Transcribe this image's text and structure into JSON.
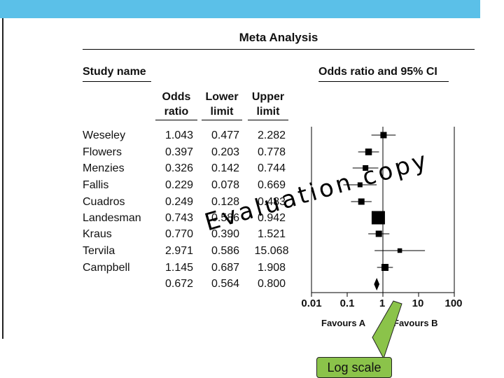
{
  "title": "Meta Analysis",
  "headers": {
    "study_name": "Study name",
    "chart_title": "Odds ratio and 95% CI",
    "odds_ratio": [
      "Odds",
      "ratio"
    ],
    "lower_limit": [
      "Lower",
      "limit"
    ],
    "upper_limit": [
      "Upper",
      "limit"
    ]
  },
  "rows": [
    {
      "name": "Weseley",
      "or": "1.043",
      "lower": "0.477",
      "upper": "2.282"
    },
    {
      "name": "Flowers",
      "or": "0.397",
      "lower": "0.203",
      "upper": "0.778"
    },
    {
      "name": "Menzies",
      "or": "0.326",
      "lower": "0.142",
      "upper": "0.744"
    },
    {
      "name": "Fallis",
      "or": "0.229",
      "lower": "0.078",
      "upper": "0.669"
    },
    {
      "name": "Cuadros",
      "or": "0.249",
      "lower": "0.128",
      "upper": "0.483"
    },
    {
      "name": "Landesman",
      "or": "0.743",
      "lower": "0.586",
      "upper": "0.942"
    },
    {
      "name": "Kraus",
      "or": "0.770",
      "lower": "0.390",
      "upper": "1.521"
    },
    {
      "name": "Tervila",
      "or": "2.971",
      "lower": "0.586",
      "upper": "15.068"
    },
    {
      "name": "Campbell",
      "or": "1.145",
      "lower": "0.687",
      "upper": "1.908"
    }
  ],
  "summary": {
    "or": "0.672",
    "lower": "0.564",
    "upper": "0.800"
  },
  "axis": {
    "ticks": [
      "0.01",
      "0.1",
      "1",
      "10",
      "100"
    ],
    "favours_a": "Favours A",
    "favours_b": "Favours B"
  },
  "watermark": "Evaluation copy",
  "callout": "Log scale",
  "colors": {
    "top_bar": "#5bc0e8",
    "callout": "#8bc34a"
  },
  "chart_data": {
    "type": "scatter",
    "scale": "log",
    "title": "Odds ratio and 95% CI",
    "xlim": [
      0.01,
      100
    ],
    "x_ticks": [
      0.01,
      0.1,
      1,
      10,
      100
    ],
    "studies": [
      {
        "name": "Weseley",
        "or": 1.043,
        "lower": 0.477,
        "upper": 2.282,
        "weight": 1.0
      },
      {
        "name": "Flowers",
        "or": 0.397,
        "lower": 0.203,
        "upper": 0.778,
        "weight": 1.1
      },
      {
        "name": "Menzies",
        "or": 0.326,
        "lower": 0.142,
        "upper": 0.744,
        "weight": 0.8
      },
      {
        "name": "Fallis",
        "or": 0.229,
        "lower": 0.078,
        "upper": 0.669,
        "weight": 0.6
      },
      {
        "name": "Cuadros",
        "or": 0.249,
        "lower": 0.128,
        "upper": 0.483,
        "weight": 1.0
      },
      {
        "name": "Landesman",
        "or": 0.743,
        "lower": 0.586,
        "upper": 0.942,
        "weight": 3.0
      },
      {
        "name": "Kraus",
        "or": 0.77,
        "lower": 0.39,
        "upper": 1.521,
        "weight": 1.0
      },
      {
        "name": "Tervila",
        "or": 2.971,
        "lower": 0.586,
        "upper": 15.068,
        "weight": 0.5
      },
      {
        "name": "Campbell",
        "or": 1.145,
        "lower": 0.687,
        "upper": 1.908,
        "weight": 1.2
      }
    ],
    "summary": {
      "or": 0.672,
      "lower": 0.564,
      "upper": 0.8
    }
  }
}
